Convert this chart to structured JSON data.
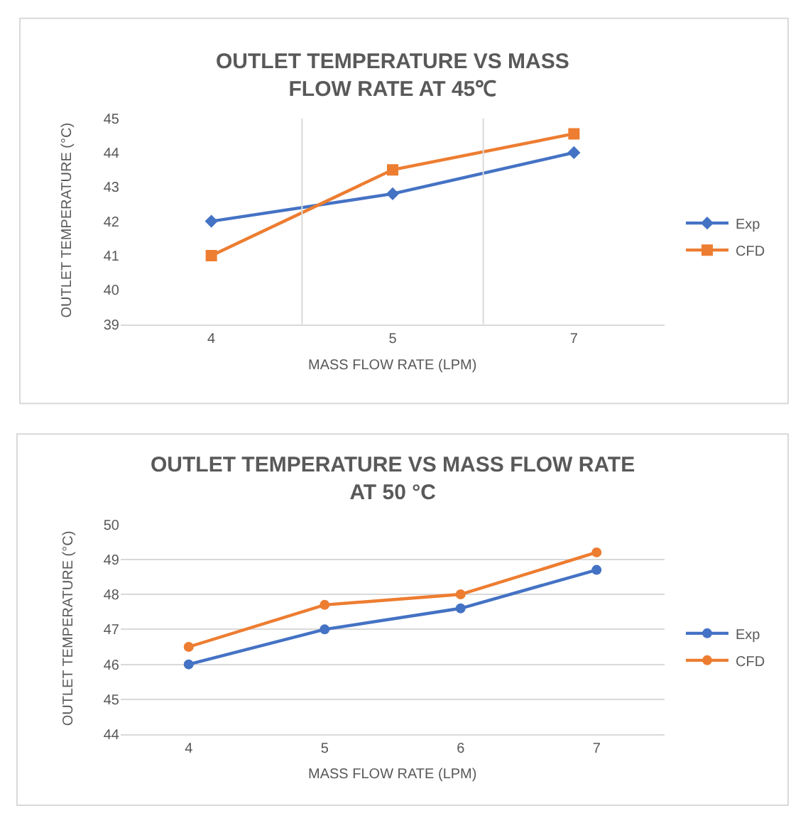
{
  "chart_data": [
    {
      "type": "line",
      "title": "OUTLET TEMPERATURE VS MASS\nFLOW RATE AT 45℃",
      "xlabel": "MASS FLOW RATE (LPM)",
      "ylabel": "OUTLET TEMPERATURE (°C)",
      "categories": [
        "4",
        "5",
        "7"
      ],
      "ylim": [
        39,
        45
      ],
      "yticks": [
        39,
        40,
        41,
        42,
        43,
        44,
        45
      ],
      "grid": "x",
      "legend": "right",
      "line_style": "solid",
      "series": [
        {
          "name": "Exp",
          "color": "#4472c4",
          "marker": "diamond",
          "values": [
            42,
            42.8,
            44
          ]
        },
        {
          "name": "CFD",
          "color": "#ed7d31",
          "marker": "square",
          "values": [
            41,
            43.5,
            44.55
          ]
        }
      ]
    },
    {
      "type": "line",
      "title": "OUTLET TEMPERATURE VS MASS FLOW RATE\nAT 50 °C",
      "xlabel": "MASS FLOW RATE (LPM)",
      "ylabel": "OUTLET TEMPERATURE (°C)",
      "categories": [
        "4",
        "5",
        "6",
        "7"
      ],
      "ylim": [
        44,
        50
      ],
      "yticks": [
        44,
        45,
        46,
        47,
        48,
        49,
        50
      ],
      "grid": "y",
      "legend": "right",
      "line_style": "solid",
      "series": [
        {
          "name": "Exp",
          "color": "#4472c4",
          "marker": "circle",
          "values": [
            46,
            47,
            47.6,
            48.7
          ]
        },
        {
          "name": "CFD",
          "color": "#ed7d31",
          "marker": "circle",
          "values": [
            46.5,
            47.7,
            48,
            49.2
          ]
        }
      ]
    }
  ]
}
